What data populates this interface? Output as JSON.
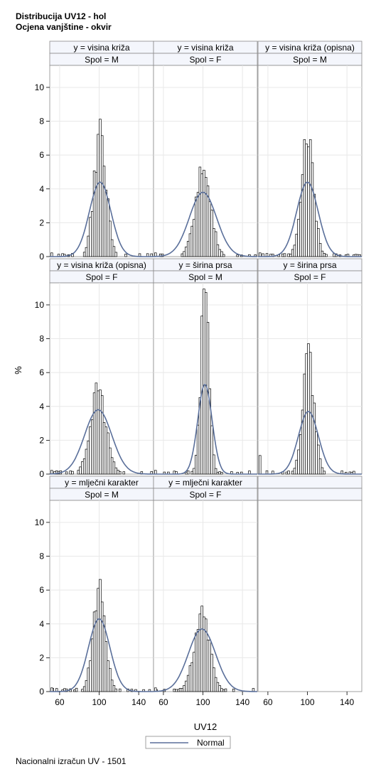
{
  "title_lines": [
    "Distribucija UV12 - hol",
    "Ocjena vanjštine - okvir"
  ],
  "footnote": "Nacionalni izračun UV - 1501",
  "chart_data": {
    "type": "histogram-panel",
    "ylabel": "%",
    "xlabel": "UV12",
    "xlim": [
      50,
      155
    ],
    "ylim": [
      0,
      11.3
    ],
    "yticks": [
      0,
      2,
      4,
      6,
      8,
      10
    ],
    "xticks": [
      60,
      100,
      140
    ],
    "bin_width": 2,
    "legend": {
      "placement": "bottom-center",
      "entries": [
        {
          "name": "Normal",
          "color": "#5a6f9a"
        }
      ]
    },
    "colors": {
      "bar_fill": "#ffffff",
      "bar_edge": "#000000",
      "curve": "#5a6f9a",
      "header_fill": "#f4f6fc",
      "grid": "#e8e8e8",
      "frame": "#8a8a8a"
    },
    "panels": [
      {
        "row_label": "y = visina križa",
        "col_label": "Spol = M",
        "mean": 101,
        "peak": 7.7,
        "curve_peak": 4.4,
        "spread": 7.5
      },
      {
        "row_label": "y = visina križa",
        "col_label": "Spol = F",
        "mean": 100,
        "peak": 5.3,
        "curve_peak": 3.8,
        "spread": 9.5
      },
      {
        "row_label": "y = visina križa (opisna)",
        "col_label": "Spol = M",
        "mean": 100,
        "peak": 7.2,
        "curve_peak": 4.4,
        "spread": 7.5
      },
      {
        "row_label": "y = visina križa (opisna)",
        "col_label": "Spol = F",
        "mean": 99,
        "peak": 5.2,
        "curve_peak": 3.8,
        "spread": 9.5
      },
      {
        "row_label": "y = širina prsa",
        "col_label": "Spol = M",
        "mean": 102,
        "peak": 11.2,
        "curve_peak": 5.3,
        "spread": 5.0
      },
      {
        "row_label": "y = širina prsa",
        "col_label": "Spol = F",
        "mean": 101,
        "peak": 7.2,
        "curve_peak": 3.7,
        "spread": 7.0
      },
      {
        "row_label": "y = mlječni karakter",
        "col_label": "Spol = M",
        "mean": 100,
        "peak": 6.4,
        "curve_peak": 4.3,
        "spread": 7.5
      },
      {
        "row_label": "y = mlječni karakter",
        "col_label": "Spol = F",
        "mean": 99,
        "peak": 4.7,
        "curve_peak": 3.7,
        "spread": 9.5
      }
    ]
  }
}
